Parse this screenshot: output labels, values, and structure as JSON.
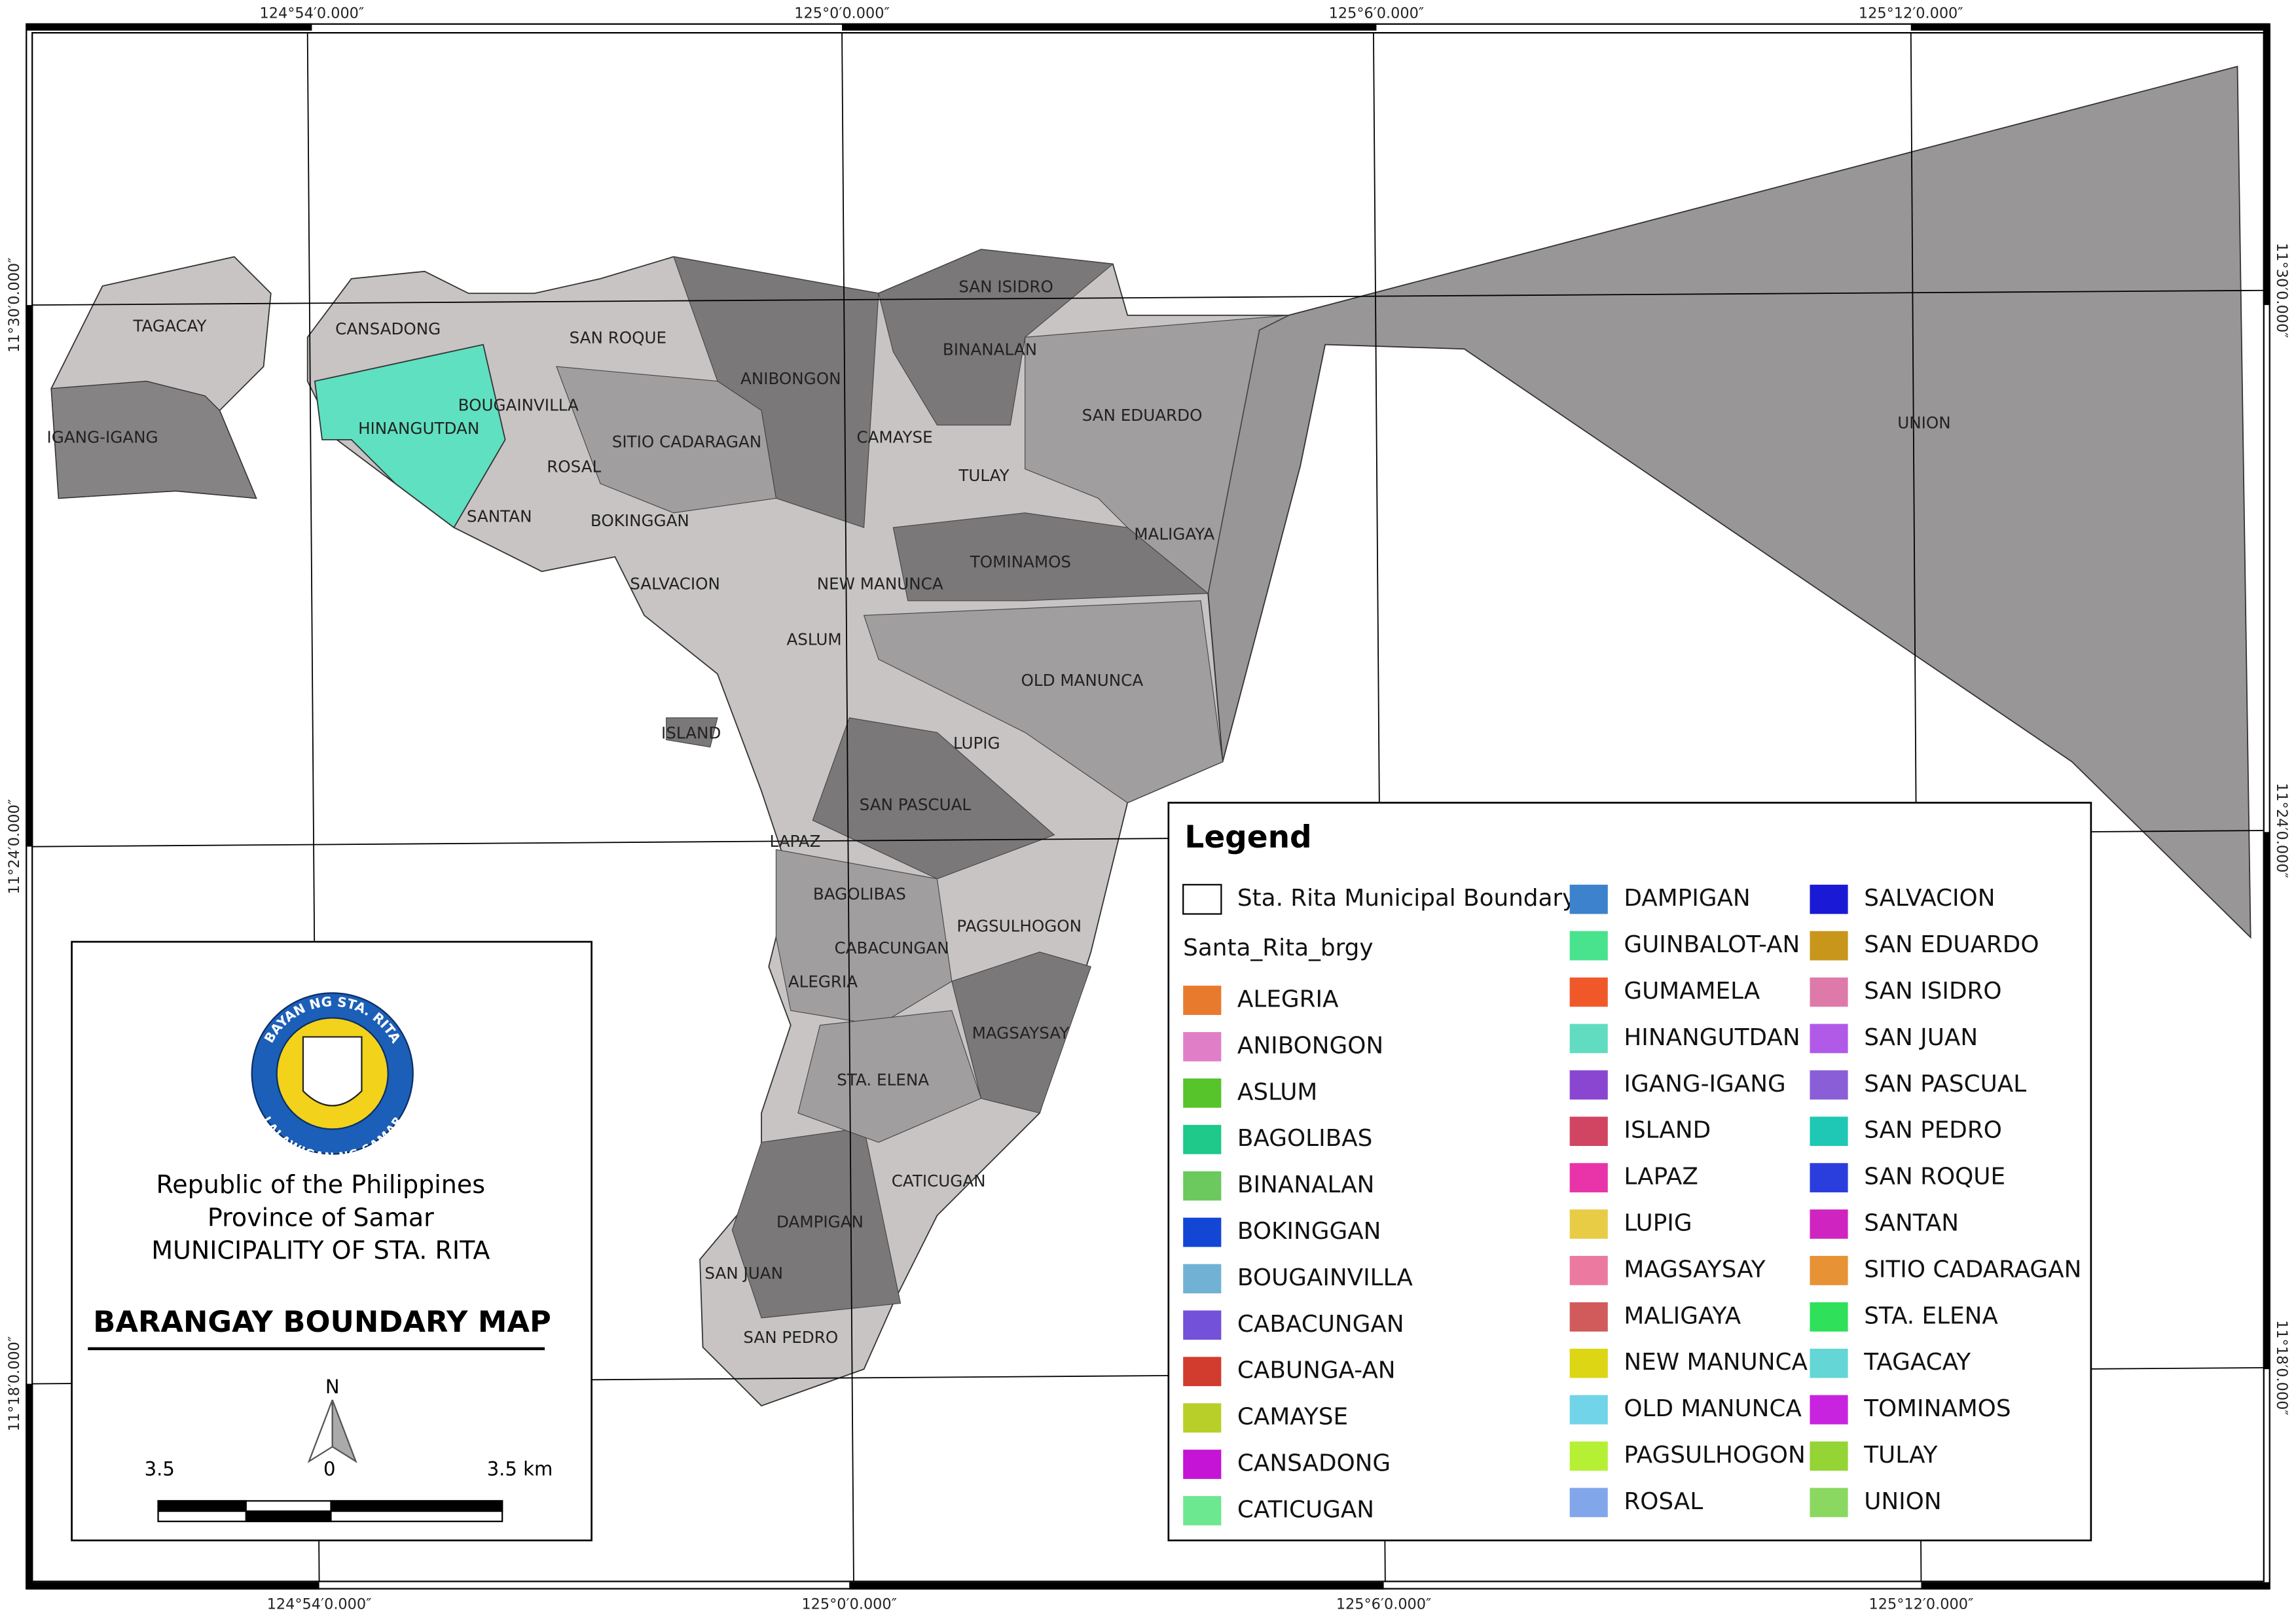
{
  "coordinates": {
    "top": [
      "124°54′0.000″",
      "125°0′0.000″",
      "125°6′0.000″",
      "125°12′0.000″"
    ],
    "bottom": [
      "124°54′0.000″",
      "125°0′0.000″",
      "125°6′0.000″",
      "125°12′0.000″"
    ],
    "left": [
      "11°30′0.000″",
      "11°24′0.000″",
      "11°18′0.000″"
    ],
    "right": [
      "11°30′0.000″",
      "11°24′0.000″",
      "11°18′0.000″"
    ]
  },
  "map_labels": [
    "TAGACAY",
    "IGANG-IGANG",
    "CANSADONG",
    "HINANGUTDAN",
    "BOUGAINVILLA",
    "SAN ROQUE",
    "ROSAL",
    "SANTAN",
    "SITIO CADARAGAN",
    "BOKINGGAN",
    "ANIBONGON",
    "SAN ISIDRO",
    "BINANALAN",
    "SAN EDUARDO",
    "CAMAYSE",
    "TULAY",
    "MALIGAYA",
    "TOMINAMOS",
    "NEW MANUNCA",
    "SALVACION",
    "ASLUM",
    "OLD MANUNCA",
    "ISLAND",
    "LUPIG",
    "SAN PASCUAL",
    "LAPAZ",
    "BAGOLIBAS",
    "PAGSULHOGON",
    "CABACUNGAN",
    "ALEGRIA",
    "MAGSAYSAY",
    "STA. ELENA",
    "CATICUGAN",
    "DAMPIGAN",
    "SAN JUAN",
    "SAN PEDRO",
    "UNION"
  ],
  "legend": {
    "title": "Legend",
    "boundary": "Sta. Rita Municipal Boundary",
    "layer": "Santa_Rita_brgy",
    "items": [
      {
        "name": "ALEGRIA",
        "color": "#e87a2e"
      },
      {
        "name": "ANIBONGON",
        "color": "#e07fc8"
      },
      {
        "name": "ASLUM",
        "color": "#56c42a"
      },
      {
        "name": "BAGOLIBAS",
        "color": "#1ec98a"
      },
      {
        "name": "BINANALAN",
        "color": "#6bc95e"
      },
      {
        "name": "BOKINGGAN",
        "color": "#1446d6"
      },
      {
        "name": "BOUGAINVILLA",
        "color": "#71b2d4"
      },
      {
        "name": "CABACUNGAN",
        "color": "#7351d9"
      },
      {
        "name": "CABUNGA-AN",
        "color": "#d13c2e"
      },
      {
        "name": "CAMAYSE",
        "color": "#b8cf2a"
      },
      {
        "name": "CANSADONG",
        "color": "#c514d6"
      },
      {
        "name": "CATICUGAN",
        "color": "#6ce890"
      },
      {
        "name": "DAMPIGAN",
        "color": "#3c82cc"
      },
      {
        "name": "GUINBALOT-AN",
        "color": "#48e38c"
      },
      {
        "name": "GUMAMELA",
        "color": "#f0582a"
      },
      {
        "name": "HINANGUTDAN",
        "color": "#62dcc0"
      },
      {
        "name": "IGANG-IGANG",
        "color": "#8a46d0"
      },
      {
        "name": "ISLAND",
        "color": "#d14462"
      },
      {
        "name": "LAPAZ",
        "color": "#e834a8"
      },
      {
        "name": "LUPIG",
        "color": "#e8cc46"
      },
      {
        "name": "MAGSAYSAY",
        "color": "#ec7aa0"
      },
      {
        "name": "MALIGAYA",
        "color": "#d15a5a"
      },
      {
        "name": "NEW MANUNCA",
        "color": "#dcd614"
      },
      {
        "name": "OLD MANUNCA",
        "color": "#72d4e8"
      },
      {
        "name": "PAGSULHOGON",
        "color": "#b6f034"
      },
      {
        "name": "ROSAL",
        "color": "#82a6ea"
      },
      {
        "name": "SALVACION",
        "color": "#1a1ad6"
      },
      {
        "name": "SAN EDUARDO",
        "color": "#c8961a"
      },
      {
        "name": "SAN ISIDRO",
        "color": "#de7aaa"
      },
      {
        "name": "SAN JUAN",
        "color": "#b25ae8"
      },
      {
        "name": "SAN PASCUAL",
        "color": "#8a5ed6"
      },
      {
        "name": "SAN PEDRO",
        "color": "#1ec8b4"
      },
      {
        "name": "SAN ROQUE",
        "color": "#2a3ede"
      },
      {
        "name": "SANTAN",
        "color": "#d024c0"
      },
      {
        "name": "SITIO CADARAGAN",
        "color": "#e89236"
      },
      {
        "name": "STA. ELENA",
        "color": "#2ee05a"
      },
      {
        "name": "TAGACAY",
        "color": "#64d6d6"
      },
      {
        "name": "TOMINAMOS",
        "color": "#c824e0"
      },
      {
        "name": "TULAY",
        "color": "#94d434"
      },
      {
        "name": "UNION",
        "color": "#8ad860"
      }
    ]
  },
  "title_block": {
    "logo_top": "BAYAN NG STA. RITA",
    "logo_bottom": "LALAWIGAN NG SAMAR",
    "lines": [
      "Republic of the Philippines",
      "Province of Samar",
      "MUNICIPALITY OF STA. RITA"
    ],
    "map_title": "BARANGAY BOUNDARY MAP"
  },
  "scale_bar": {
    "north": "N",
    "left": "3.5",
    "center": "0",
    "right": "3.5 km"
  }
}
